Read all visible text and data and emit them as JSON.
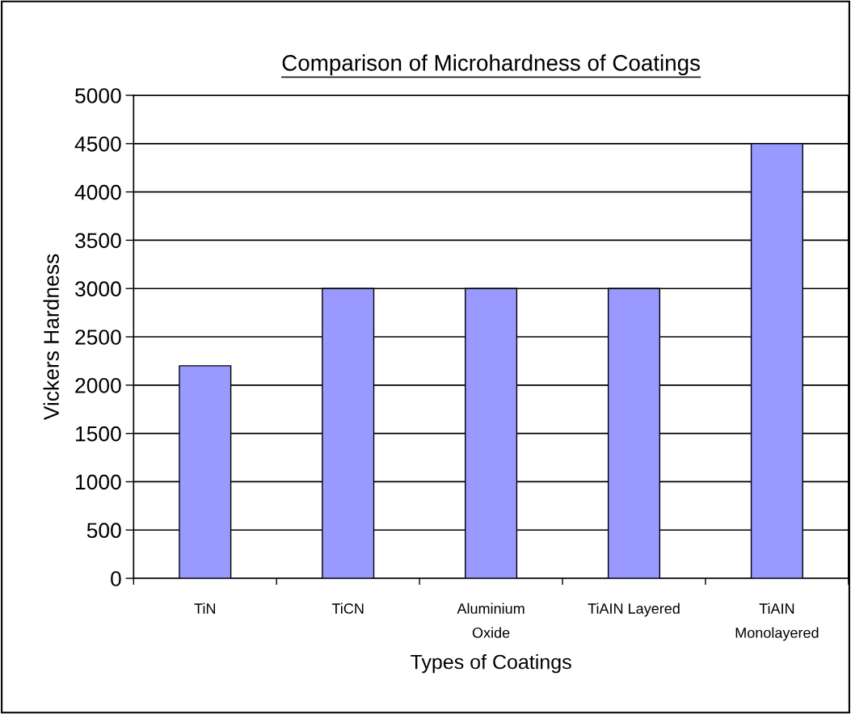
{
  "chart_data": {
    "type": "bar",
    "title": "Comparison of Microhardness of Coatings",
    "xlabel": "Types of Coatings",
    "ylabel": "Vickers Hardness",
    "categories": [
      "TiN",
      "TiCN",
      "Aluminium\nOxide",
      "TiAIN Layered",
      "TiAIN\nMonolayered"
    ],
    "values": [
      2200,
      3000,
      3000,
      3000,
      4500
    ],
    "color": "#9999ff",
    "ylim": [
      0,
      5000
    ],
    "yticks": [
      0,
      500,
      1000,
      1500,
      2000,
      2500,
      3000,
      3500,
      4000,
      4500,
      5000
    ],
    "grid": "y",
    "legend": false
  }
}
